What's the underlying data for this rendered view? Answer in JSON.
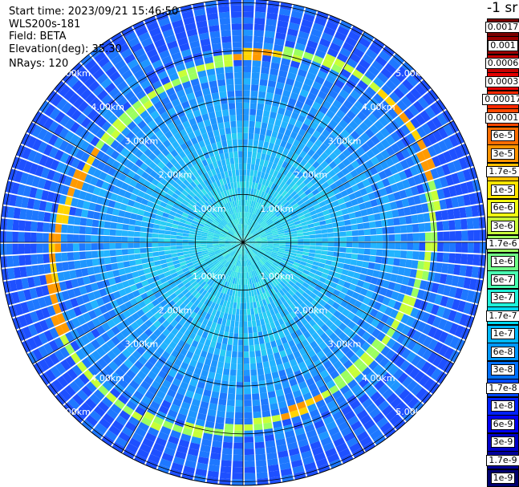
{
  "info": {
    "start_time": "Start time: 2023/09/21 15:46:50",
    "instrument": "WLS200s-181",
    "field": "Field: BETA",
    "elevation": "Elevation(deg): 35.30",
    "nrays": "NRays: 120"
  },
  "range_labels": [
    "1.00km",
    "2.00km",
    "3.00km",
    "4.00km",
    "5.00km"
  ],
  "colorbar": {
    "title": "-1 sr",
    "labels": [
      "0.0017",
      "0.001",
      "0.0006",
      "0.0003",
      "0.00017",
      "0.0001",
      "6e-5",
      "3e-5",
      "1.7e-5",
      "1e-5",
      "6e-6",
      "3e-6",
      "1.7e-6",
      "1e-6",
      "6e-7",
      "3e-7",
      "1.7e-7",
      "1e-7",
      "6e-8",
      "3e-8",
      "1.7e-8",
      "1e-8",
      "6e-9",
      "3e-9",
      "1.7e-9",
      "1e-9"
    ],
    "colors": [
      "#7a0000",
      "#9a0000",
      "#c80000",
      "#e60000",
      "#ff2a00",
      "#ff4800",
      "#ff6e00",
      "#ff9400",
      "#ffc000",
      "#ffe400",
      "#f0ff10",
      "#c8ff38",
      "#9cff60",
      "#70ff88",
      "#48ffb0",
      "#20f0d8",
      "#00d8f0",
      "#00b8ff",
      "#0098ff",
      "#0070ff",
      "#0048ff",
      "#0020ff",
      "#0000f0",
      "#0000c8",
      "#00009a",
      "#000070"
    ]
  },
  "ppi": {
    "n_rays": 120,
    "max_range_km": 5.0
  }
}
